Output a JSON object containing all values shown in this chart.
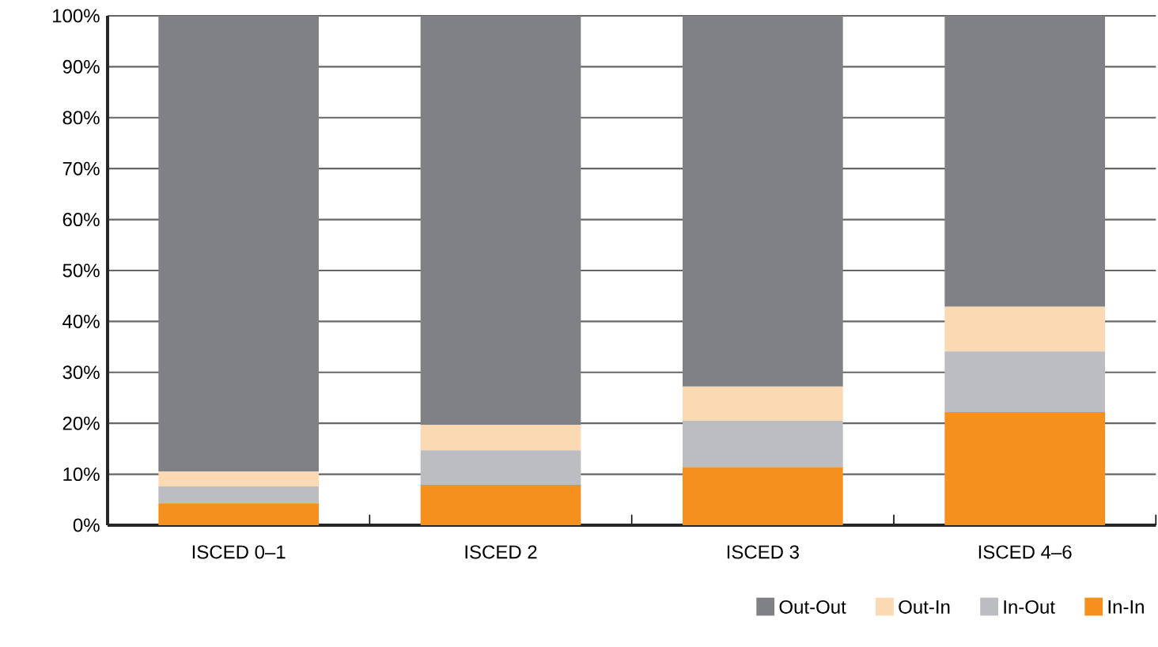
{
  "chart_data": {
    "type": "bar",
    "stacked": true,
    "categories": [
      "ISCED 0–1",
      "ISCED 2",
      "ISCED 3",
      "ISCED 4–6"
    ],
    "series": [
      {
        "name": "In-In",
        "color": "#f5901e",
        "values": [
          4.3,
          7.9,
          11.4,
          22.2
        ]
      },
      {
        "name": "In-Out",
        "color": "#bcbdc0",
        "values": [
          3.3,
          6.8,
          9.1,
          11.9
        ]
      },
      {
        "name": "Out-In",
        "color": "#fbd9b3",
        "values": [
          2.9,
          5.0,
          6.7,
          8.8
        ]
      },
      {
        "name": "Out-Out",
        "color": "#808184",
        "values": [
          89.5,
          80.3,
          72.8,
          57.1
        ]
      }
    ],
    "ylim": [
      0,
      100
    ],
    "yticks": [
      {
        "value": 0,
        "label": "0%"
      },
      {
        "value": 10,
        "label": "10%"
      },
      {
        "value": 20,
        "label": "20%"
      },
      {
        "value": 30,
        "label": "30%"
      },
      {
        "value": 40,
        "label": "40%"
      },
      {
        "value": 50,
        "label": "50%"
      },
      {
        "value": 60,
        "label": "60%"
      },
      {
        "value": 70,
        "label": "70%"
      },
      {
        "value": 80,
        "label": "80%"
      },
      {
        "value": 90,
        "label": "90%"
      },
      {
        "value": 100,
        "label": "100%"
      }
    ],
    "grid": "y",
    "legend": "bottom right"
  }
}
